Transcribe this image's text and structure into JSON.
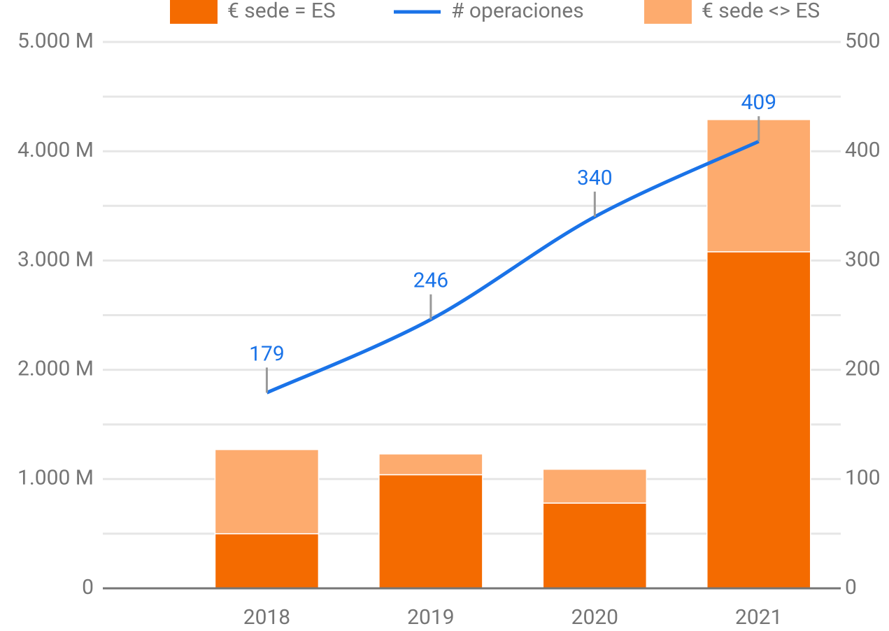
{
  "chart_data": {
    "type": "bar+line",
    "categories": [
      "2018",
      "2019",
      "2020",
      "2021"
    ],
    "series": [
      {
        "name": "€ sede = ES",
        "type": "bar",
        "color": "#f46b00",
        "values": [
          500,
          1040,
          780,
          3080
        ]
      },
      {
        "name": "# operaciones",
        "type": "line",
        "axis": "y2",
        "color": "#1a73e8",
        "values": [
          179,
          246,
          340,
          409
        ],
        "data_labels": true
      },
      {
        "name": "€ sede <> ES",
        "type": "bar",
        "color": "#fdab6e",
        "values": [
          770,
          190,
          310,
          1210
        ]
      }
    ],
    "stacked": true,
    "ylim": [
      0,
      5000
    ],
    "yticks": [
      0,
      {
        "value": 1000,
        "label": "1.000 M"
      },
      {
        "value": 2000,
        "label": "2.000 M"
      },
      {
        "value": 3000,
        "label": "3.000 M"
      },
      {
        "value": 4000,
        "label": "4.000 M"
      },
      {
        "value": 5000,
        "label": "5.000 M"
      }
    ],
    "y_minor_gridlines": [
      500,
      1500,
      2500,
      3500,
      4500
    ],
    "y2lim": [
      0,
      500
    ],
    "y2ticks": [
      0,
      100,
      200,
      300,
      400,
      500
    ],
    "grid": true,
    "legend": "top"
  }
}
